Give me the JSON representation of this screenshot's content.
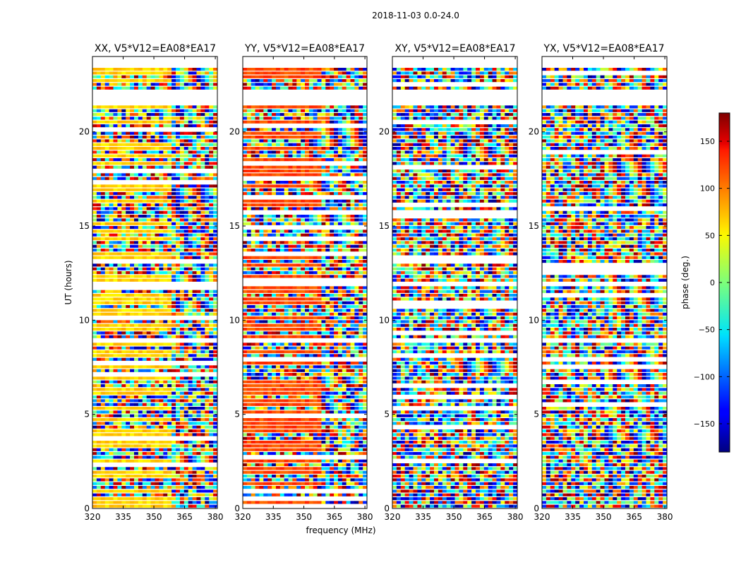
{
  "chart_data": {
    "type": "heatmap",
    "suptitle": "2018-11-03 0.0-24.0",
    "xlabel": "frequency (MHz)",
    "ylabel": "UT (hours)",
    "xlim": [
      320,
      381
    ],
    "ylim": [
      0,
      24
    ],
    "xticks": [
      320,
      335,
      350,
      365,
      380
    ],
    "yticks": [
      0,
      5,
      10,
      15,
      20
    ],
    "panels": [
      {
        "title": "XX, V5*V12=EA08*EA17",
        "mode": "parallel",
        "base_phase": 60
      },
      {
        "title": "YY, V5*V12=EA08*EA17",
        "mode": "parallel",
        "base_phase": 110
      },
      {
        "title": "XY, V5*V12=EA08*EA17",
        "mode": "cross",
        "base_phase": 0
      },
      {
        "title": "YX, V5*V12=EA08*EA17",
        "mode": "cross",
        "base_phase": 0
      }
    ],
    "colorbar": {
      "label": "phase (deg.)",
      "range": [
        -180,
        180
      ],
      "ticks": [
        150,
        100,
        50,
        0,
        -50,
        -100,
        -150
      ],
      "tick_labels": [
        "150",
        "100",
        "50",
        "0",
        "−50",
        "−100",
        "−150"
      ],
      "colormap": "jet"
    },
    "data_gaps_hours": [
      [
        21.3,
        22.2
      ],
      [
        11.8,
        11.9
      ],
      [
        8.8,
        8.95
      ],
      [
        2.2,
        2.3
      ]
    ]
  }
}
